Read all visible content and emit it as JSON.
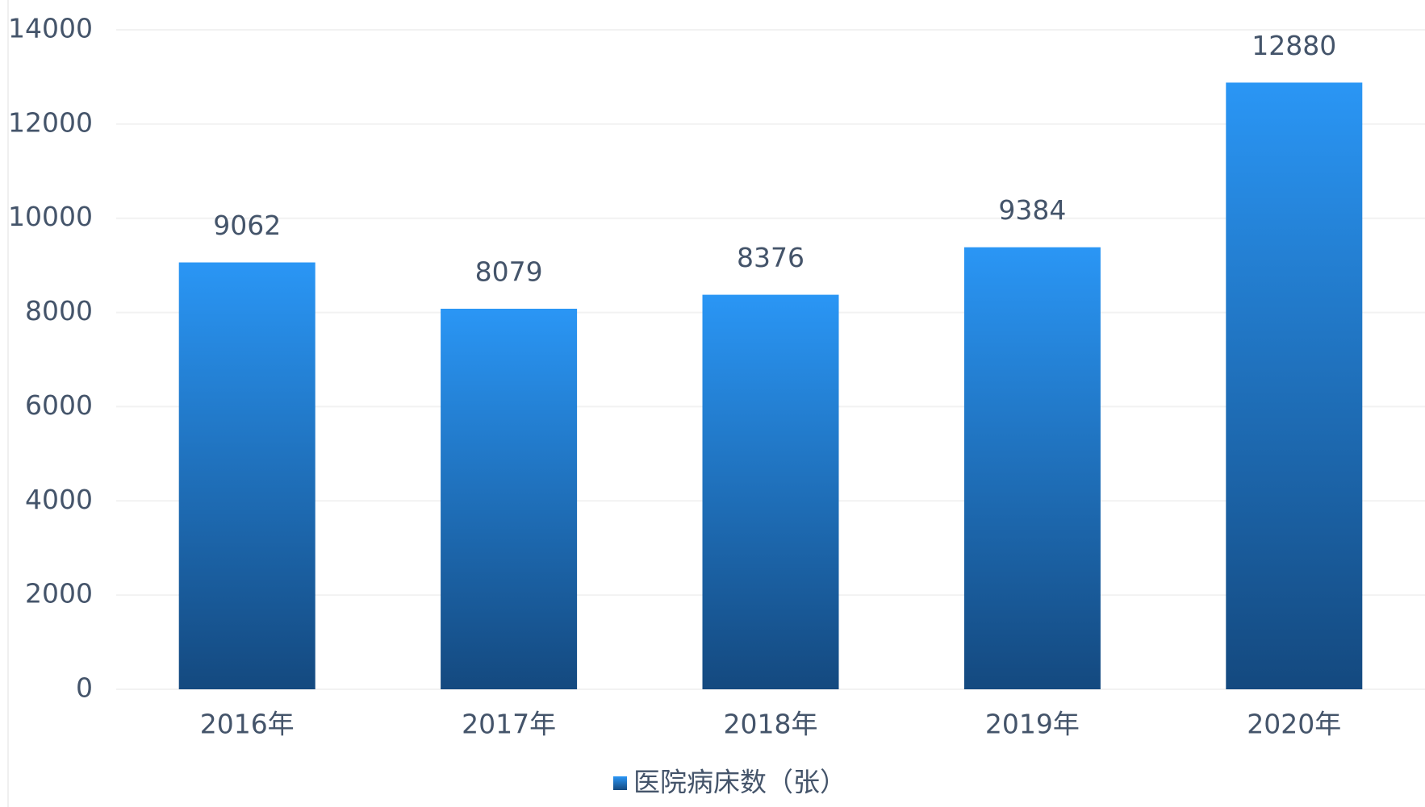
{
  "chart_data": {
    "type": "bar",
    "categories": [
      "2016年",
      "2017年",
      "2018年",
      "2019年",
      "2020年"
    ],
    "series": [
      {
        "name": "医院病床数（张）",
        "color": "#2a96f5",
        "values": [
          9062,
          8079,
          8376,
          9384,
          12880
        ]
      }
    ],
    "ylim": [
      0,
      14000
    ],
    "yticks": [
      0,
      2000,
      4000,
      6000,
      8000,
      10000,
      12000,
      14000
    ],
    "grid": true
  }
}
